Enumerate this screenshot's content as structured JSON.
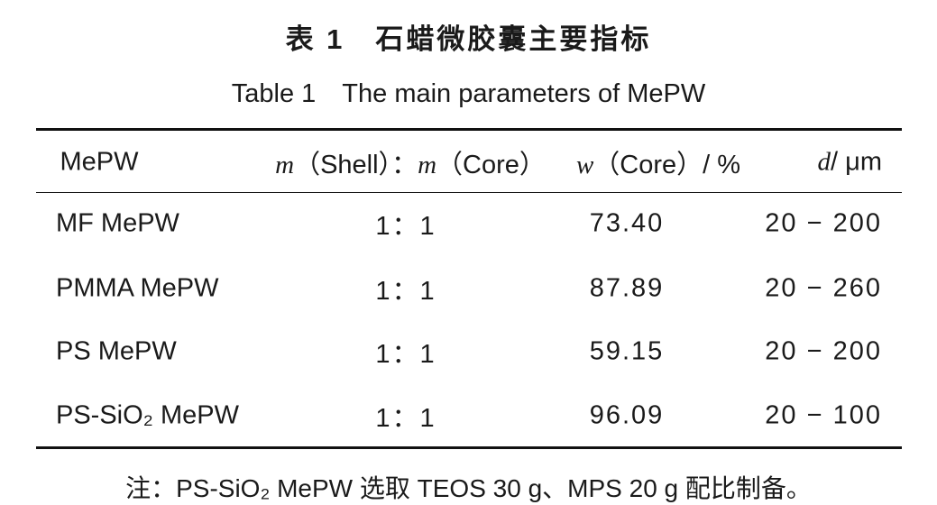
{
  "header": {
    "title_cn": "表 1　石蜡微胶囊主要指标",
    "title_en": "Table 1　The main parameters of MePW"
  },
  "table": {
    "header": [
      [
        {
          "text": "MePW",
          "italic": false
        }
      ],
      [
        {
          "text": "m",
          "italic": true
        },
        {
          "text": "（Shell）：",
          "italic": false
        },
        {
          "text": "m",
          "italic": true
        },
        {
          "text": "（Core）",
          "italic": false
        }
      ],
      [
        {
          "text": "w",
          "italic": true
        },
        {
          "text": "（Core）/ %",
          "italic": false
        }
      ],
      [
        {
          "text": "d",
          "italic": true
        },
        {
          "text": "/ μm",
          "italic": false
        }
      ]
    ],
    "rows": [
      [
        "MF MePW",
        "1：1",
        "73.40",
        "20 − 200"
      ],
      [
        "PMMA MePW",
        "1：1",
        "87.89",
        "20 − 260"
      ],
      [
        "PS MePW",
        "1：1",
        "59.15",
        "20 − 200"
      ],
      [
        "PS-SiO₂ MePW",
        "1：1",
        "96.09",
        "20 − 100"
      ]
    ]
  },
  "note": "注：PS-SiO₂ MePW 选取 TEOS 30 g、MPS 20 g 配比制备。"
}
